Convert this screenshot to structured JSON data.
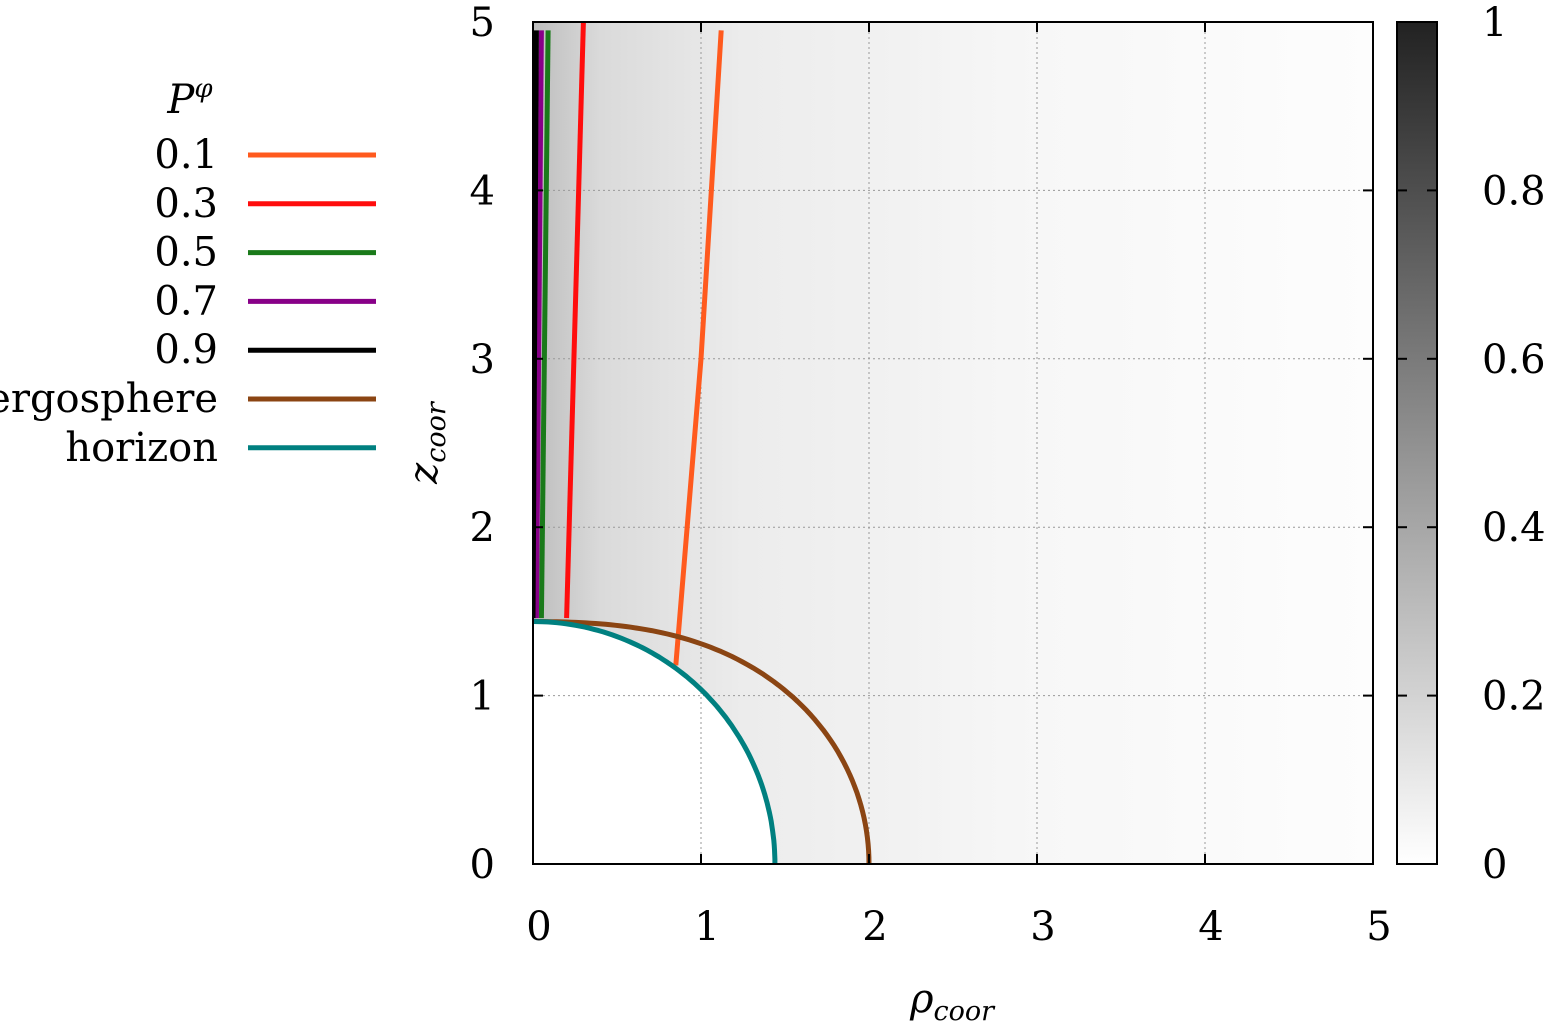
{
  "chart_data": {
    "type": "contour",
    "xlabel": {
      "symbol": "ρ",
      "subscript": "coor"
    },
    "ylabel": {
      "symbol": "z",
      "subscript": "coor"
    },
    "xlim": [
      0,
      5
    ],
    "ylim": [
      0,
      5
    ],
    "xticks": [
      "0",
      "1",
      "2",
      "3",
      "4",
      "5"
    ],
    "yticks": [
      "0",
      "1",
      "2",
      "3",
      "4",
      "5"
    ],
    "grid": true,
    "colorbar": {
      "range": [
        0,
        1
      ],
      "ticks": [
        "0",
        "0.2",
        "0.4",
        "0.6",
        "0.8",
        "1"
      ],
      "colormap": "white-to-black"
    },
    "legend": {
      "title": {
        "symbol": "P",
        "superscript": "φ"
      },
      "placement": "left-outside"
    },
    "series": [
      {
        "name": "0.1",
        "color": "#ff5a1e",
        "points": [
          [
            0.85,
            1.18
          ],
          [
            1.0,
            3.0
          ],
          [
            1.12,
            4.95
          ]
        ]
      },
      {
        "name": "0.3",
        "color": "#ff0d0d",
        "points": [
          [
            0.2,
            1.46
          ],
          [
            0.3,
            5.0
          ]
        ]
      },
      {
        "name": "0.5",
        "color": "#1a7a1a",
        "points": [
          [
            0.05,
            1.46
          ],
          [
            0.09,
            4.95
          ]
        ]
      },
      {
        "name": "0.7",
        "color": "#880088",
        "points": [
          [
            0.02,
            1.46
          ],
          [
            0.05,
            4.95
          ]
        ]
      },
      {
        "name": "0.9",
        "color": "#000000",
        "points": [
          [
            0.0,
            1.46
          ],
          [
            0.02,
            4.95
          ]
        ]
      },
      {
        "name": "ergosphere",
        "color": "#8b4513",
        "shape": "ergosphere",
        "r_pole": 1.44,
        "r_equator": 2.0
      },
      {
        "name": "horizon",
        "color": "#008080",
        "shape": "circle",
        "radius": 1.44
      }
    ]
  }
}
